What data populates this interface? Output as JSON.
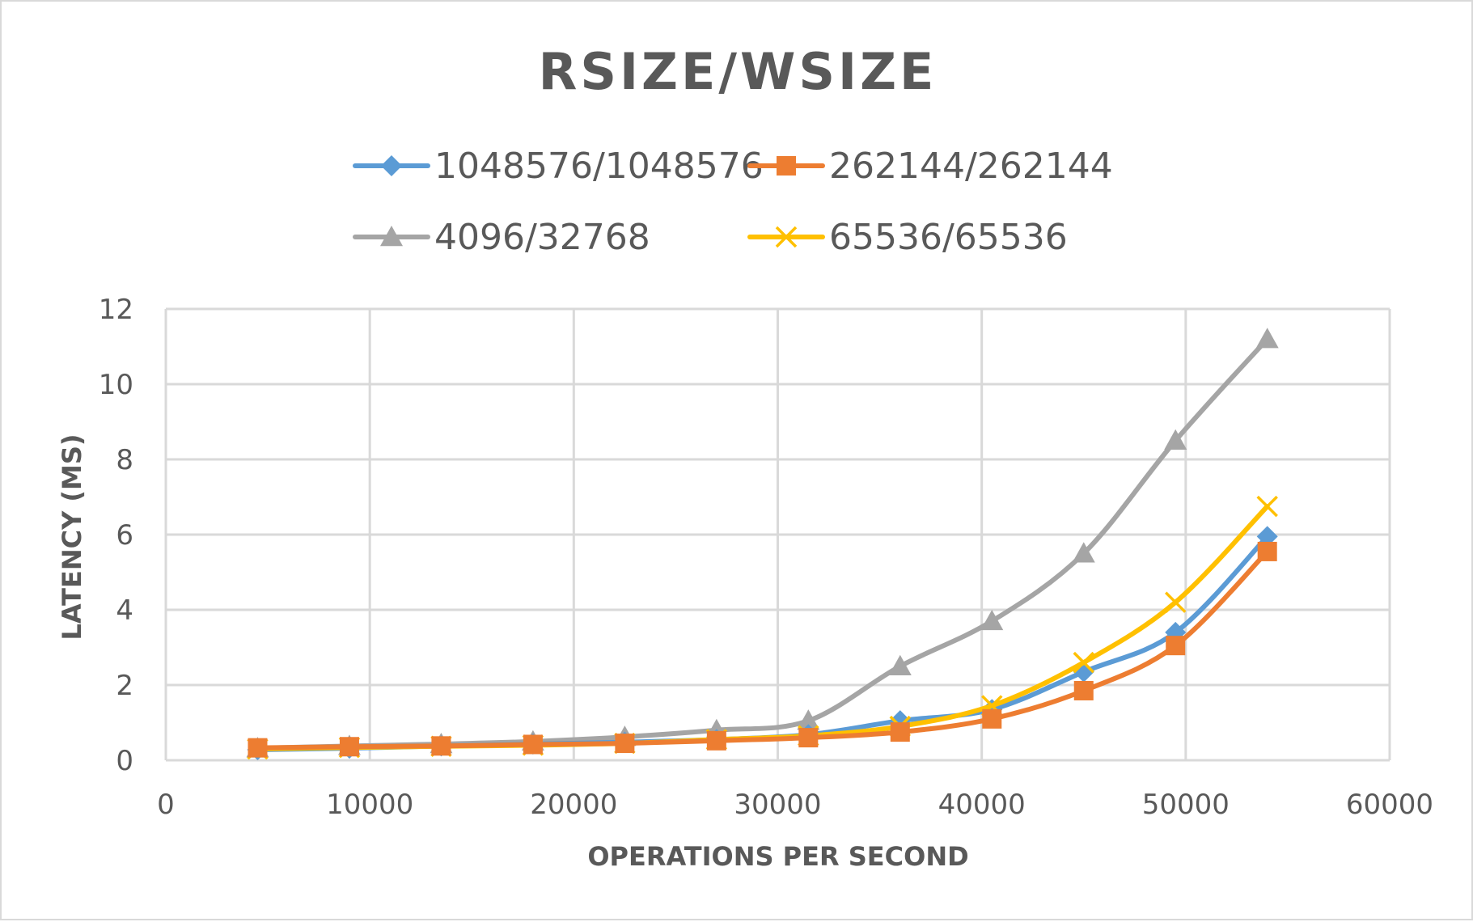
{
  "chart_data": {
    "type": "line",
    "title": "RSIZE/WSIZE",
    "xlabel": "OPERATIONS PER SECOND",
    "ylabel": "LATENCY (MS)",
    "xlim": [
      0,
      60000
    ],
    "ylim": [
      0,
      12
    ],
    "x_ticks": [
      0,
      10000,
      20000,
      30000,
      40000,
      50000,
      60000
    ],
    "y_ticks": [
      0,
      2,
      4,
      6,
      8,
      10,
      12
    ],
    "grid": true,
    "legend_position": "top",
    "series": [
      {
        "name": "1048576/1048576",
        "color": "#5b9bd5",
        "marker": "diamond",
        "points": [
          [
            4500,
            0.28
          ],
          [
            9000,
            0.32
          ],
          [
            13500,
            0.38
          ],
          [
            18000,
            0.43
          ],
          [
            22500,
            0.48
          ],
          [
            27000,
            0.55
          ],
          [
            31500,
            0.68
          ],
          [
            36000,
            1.05
          ],
          [
            40500,
            1.35
          ],
          [
            45000,
            2.35
          ],
          [
            49500,
            3.4
          ],
          [
            54000,
            5.95
          ]
        ]
      },
      {
        "name": "262144/262144",
        "color": "#ed7d31",
        "marker": "square",
        "points": [
          [
            4500,
            0.33
          ],
          [
            9000,
            0.36
          ],
          [
            13500,
            0.38
          ],
          [
            18000,
            0.42
          ],
          [
            22500,
            0.45
          ],
          [
            27000,
            0.52
          ],
          [
            31500,
            0.6
          ],
          [
            36000,
            0.75
          ],
          [
            40500,
            1.1
          ],
          [
            45000,
            1.85
          ],
          [
            49500,
            3.05
          ],
          [
            54000,
            5.55
          ]
        ]
      },
      {
        "name": "4096/32768",
        "color": "#a5a5a5",
        "marker": "triangle",
        "points": [
          [
            4500,
            0.32
          ],
          [
            9000,
            0.38
          ],
          [
            13500,
            0.43
          ],
          [
            18000,
            0.5
          ],
          [
            22500,
            0.62
          ],
          [
            27000,
            0.8
          ],
          [
            31500,
            1.05
          ],
          [
            36000,
            2.5
          ],
          [
            40500,
            3.7
          ],
          [
            45000,
            5.5
          ],
          [
            49500,
            8.5
          ],
          [
            54000,
            11.2
          ]
        ]
      },
      {
        "name": "65536/65536",
        "color": "#ffc000",
        "marker": "x",
        "points": [
          [
            4500,
            0.3
          ],
          [
            9000,
            0.34
          ],
          [
            13500,
            0.37
          ],
          [
            18000,
            0.4
          ],
          [
            22500,
            0.45
          ],
          [
            27000,
            0.55
          ],
          [
            31500,
            0.65
          ],
          [
            36000,
            0.9
          ],
          [
            40500,
            1.45
          ],
          [
            45000,
            2.6
          ],
          [
            49500,
            4.2
          ],
          [
            54000,
            6.75
          ]
        ]
      }
    ]
  }
}
